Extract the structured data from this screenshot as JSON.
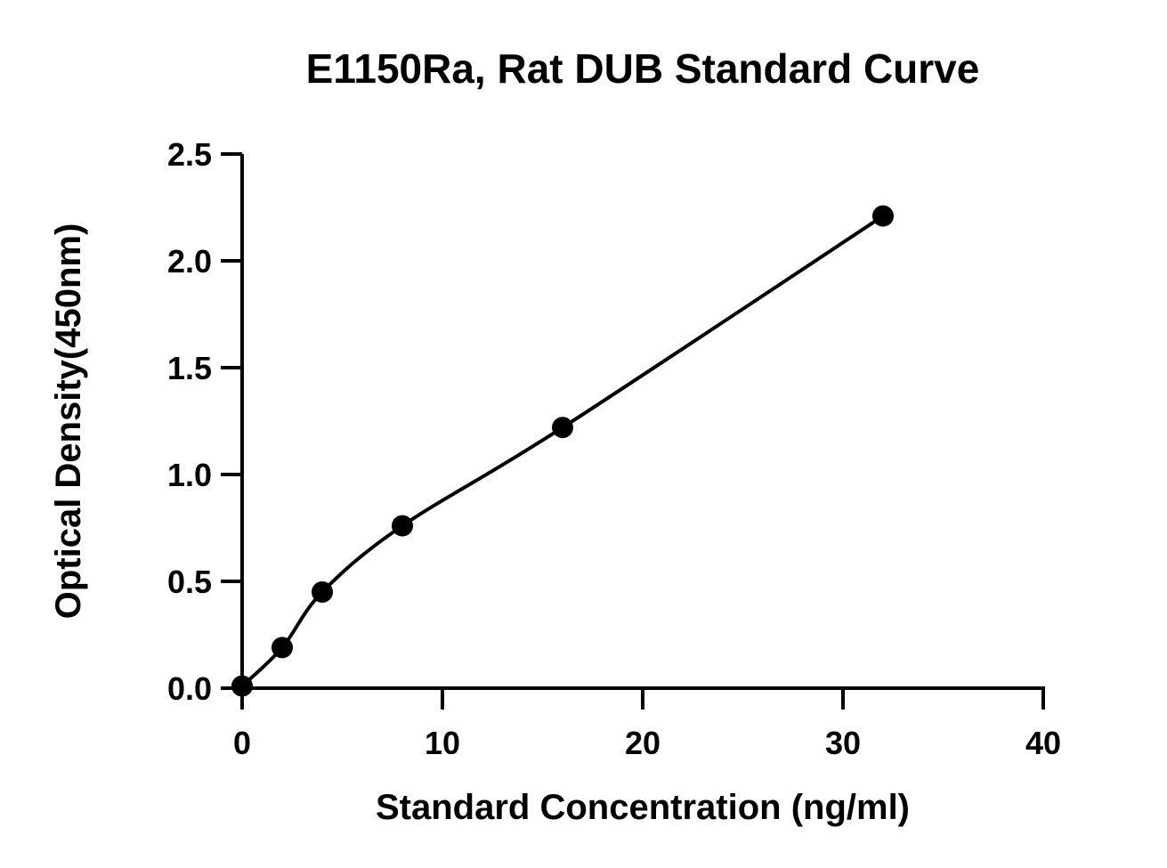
{
  "chart_data": {
    "type": "scatter",
    "title": "E1150Ra, Rat DUB Standard Curve",
    "xlabel": "Standard Concentration (ng/ml)",
    "ylabel": "Optical Density(450nm)",
    "xlim": [
      0,
      40
    ],
    "ylim": [
      0,
      2.5
    ],
    "xticks": [
      "0",
      "10",
      "20",
      "30",
      "40"
    ],
    "yticks": [
      "0.0",
      "0.5",
      "1.0",
      "1.5",
      "2.0",
      "2.5"
    ],
    "grid": false,
    "series": [
      {
        "x": [
          0,
          2,
          4,
          8,
          16,
          32
        ],
        "y": [
          0.01,
          0.19,
          0.45,
          0.76,
          1.22,
          2.21
        ]
      }
    ],
    "fit_curve": true
  }
}
